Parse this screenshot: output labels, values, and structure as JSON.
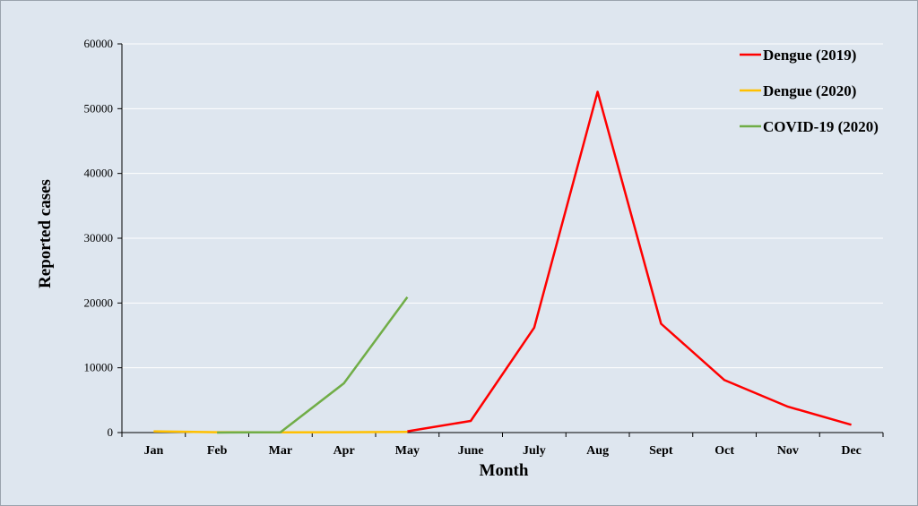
{
  "chart_data": {
    "type": "line",
    "xlabel": "Month",
    "ylabel": "Reported cases",
    "ylim": [
      0,
      60000
    ],
    "y_ticks": [
      "0",
      "10000",
      "20000",
      "30000",
      "40000",
      "50000",
      "60000"
    ],
    "grid": true,
    "legend_position": "top-right",
    "categories": [
      "Jan",
      "Feb",
      "Mar",
      "Apr",
      "May",
      "June",
      "July",
      "Aug",
      "Sept",
      "Oct",
      "Nov",
      "Dec"
    ],
    "series": [
      {
        "name": "Dengue (2019)",
        "color": "#ff0000",
        "values": [
          null,
          null,
          null,
          null,
          200,
          1800,
          16200,
          52600,
          16800,
          8100,
          4000,
          1200
        ]
      },
      {
        "name": "Dengue (2020)",
        "color": "#ffc000",
        "values": [
          200,
          50,
          30,
          60,
          100,
          null,
          null,
          null,
          null,
          null,
          null,
          null
        ]
      },
      {
        "name": "COVID-19 (2020)",
        "color": "#70ad47",
        "values": [
          null,
          0,
          50,
          7600,
          20900,
          null,
          null,
          null,
          null,
          null,
          null,
          null
        ]
      }
    ]
  }
}
